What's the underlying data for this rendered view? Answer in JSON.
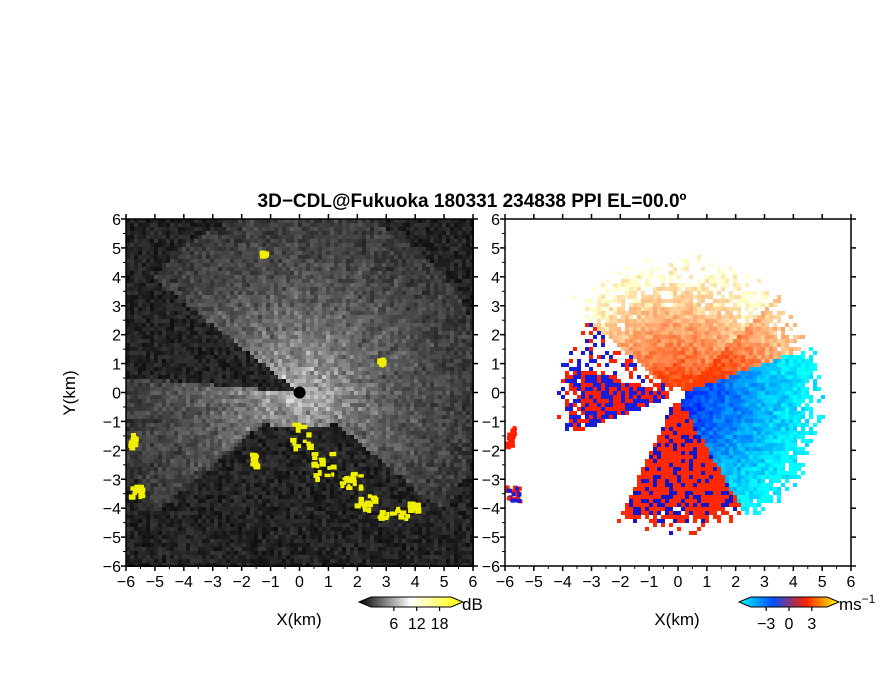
{
  "title": "3D−CDL@Fukuoka 180331 234838 PPI EL=00.0º",
  "chart_data": [
    {
      "type": "heatmap",
      "quantity": "backscatter intensity",
      "xlabel": "X(km)",
      "ylabel": "Y(km)",
      "xlim": [
        -6,
        6
      ],
      "ylim": [
        -6,
        6
      ],
      "xticks": [
        "−6",
        "−5",
        "−4",
        "−3",
        "−2",
        "−1",
        "0",
        "1",
        "2",
        "3",
        "4",
        "5",
        "6"
      ],
      "yticks": [
        "6",
        "5",
        "4",
        "3",
        "2",
        "1",
        "0",
        "−1",
        "−2",
        "−3",
        "−4",
        "−5",
        "−6"
      ],
      "colorbar": {
        "unit": "dB",
        "ticks": [
          "6",
          "12",
          "18"
        ],
        "tick_values": [
          6,
          12,
          18
        ],
        "range": [
          0,
          21
        ],
        "colors": [
          "#000000",
          "#ffffff",
          "#ffff00"
        ]
      },
      "grid": false
    },
    {
      "type": "heatmap",
      "quantity": "radial velocity",
      "xlabel": "X(km)",
      "ylabel": "",
      "xlim": [
        -6,
        6
      ],
      "ylim": [
        -6,
        6
      ],
      "xticks": [
        "−6",
        "−5",
        "−4",
        "−3",
        "−2",
        "−1",
        "0",
        "1",
        "2",
        "3",
        "4",
        "5",
        "6"
      ],
      "yticks": [
        "6",
        "5",
        "4",
        "3",
        "2",
        "1",
        "0",
        "−1",
        "−2",
        "−3",
        "−4",
        "−5",
        "−6"
      ],
      "colorbar": {
        "unit": "ms",
        "unit_exponent": "−1",
        "ticks": [
          "−3",
          "0",
          "3"
        ],
        "tick_values": [
          -3,
          0,
          3
        ],
        "range": [
          -5,
          5
        ],
        "colors": [
          "#00ffff",
          "#0050ff",
          "#ff2000",
          "#ffff00"
        ]
      },
      "grid": false
    }
  ]
}
